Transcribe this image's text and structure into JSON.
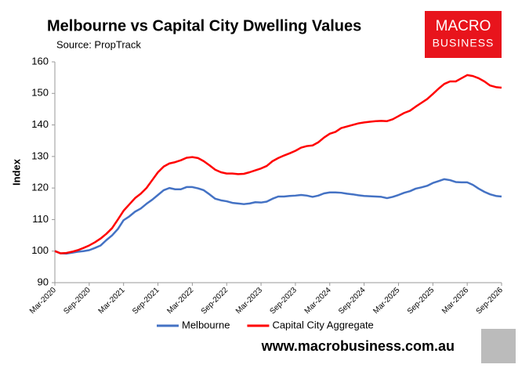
{
  "chart_data": {
    "type": "line",
    "title": "Melbourne vs Capital City Dwelling Values",
    "subtitle": "Source: PropTrack",
    "y_label": "Index",
    "categories": [
      "Mar-2020",
      null,
      null,
      null,
      null,
      null,
      "Sep-2020",
      null,
      null,
      null,
      null,
      null,
      "Mar-2021",
      null,
      null,
      null,
      null,
      null,
      "Sep-2021",
      null,
      null,
      null,
      null,
      null,
      "Mar-2022",
      null,
      null,
      null,
      null,
      null,
      "Sep-2022",
      null,
      null,
      null,
      null,
      null,
      "Mar-2023",
      null,
      null,
      null,
      null,
      null,
      "Sep-2023",
      null,
      null,
      null,
      null,
      null,
      "Mar-2024",
      null,
      null,
      null,
      null,
      null,
      "Sep-2024",
      null,
      null,
      null,
      null,
      null,
      "Mar-2025",
      null,
      null,
      null,
      null,
      null,
      "Sep-2025",
      null,
      null,
      null,
      null,
      null,
      "Mar-2026",
      null,
      null,
      null,
      null,
      null,
      "Sep-2026"
    ],
    "series": [
      {
        "name": "Melbourne",
        "color": "#4472c4",
        "values": [
          100,
          99.3,
          99.2,
          99.5,
          99.8,
          100.0,
          100.3,
          101.0,
          101.8,
          103.5,
          105,
          107,
          109.8,
          111,
          112.5,
          113.5,
          115,
          116.3,
          117.8,
          119.3,
          120,
          119.6,
          119.6,
          120.3,
          120.3,
          119.9,
          119.3,
          118,
          116.6,
          116.1,
          115.8,
          115.3,
          115.1,
          114.9,
          115.1,
          115.5,
          115.4,
          115.7,
          116.6,
          117.3,
          117.3,
          117.5,
          117.6,
          117.8,
          117.6,
          117.2,
          117.6,
          118.3,
          118.6,
          118.6,
          118.5,
          118.2,
          118,
          117.7,
          117.5,
          117.4,
          117.3,
          117.2,
          116.8,
          117.2,
          117.8,
          118.5,
          119,
          119.8,
          120.2,
          120.7,
          121.6,
          122.2,
          122.8,
          122.5,
          121.9,
          121.8,
          121.8,
          121,
          119.8,
          118.8,
          118,
          117.5,
          117.3
        ]
      },
      {
        "name": "Capital City Aggregate",
        "color": "#ff0000",
        "values": [
          100,
          99.3,
          99.4,
          99.8,
          100.3,
          101,
          101.8,
          102.8,
          104,
          105.5,
          107.3,
          110,
          112.8,
          114.8,
          116.8,
          118.2,
          120,
          122.5,
          125,
          126.8,
          127.8,
          128.2,
          128.8,
          129.6,
          129.8,
          129.5,
          128.5,
          127.2,
          125.8,
          125,
          124.6,
          124.6,
          124.4,
          124.5,
          125,
          125.6,
          126.2,
          127,
          128.5,
          129.5,
          130.3,
          131,
          131.8,
          132.8,
          133.3,
          133.5,
          134.5,
          136,
          137.2,
          137.8,
          139,
          139.5,
          140,
          140.5,
          140.8,
          141,
          141.2,
          141.3,
          141.2,
          141.8,
          142.8,
          143.8,
          144.5,
          145.8,
          147,
          148.2,
          149.8,
          151.5,
          153,
          153.8,
          153.8,
          154.8,
          155.8,
          155.5,
          154.8,
          153.8,
          152.5,
          152,
          151.8
        ]
      }
    ],
    "ylim": [
      90,
      160
    ],
    "yticks": [
      90,
      100,
      110,
      120,
      130,
      140,
      150,
      160
    ],
    "grid": false,
    "legend": "bottom"
  },
  "logo": {
    "line1": "MACRO",
    "line2": "BUSINESS"
  },
  "footer": {
    "url": "www.macrobusiness.com.au"
  }
}
